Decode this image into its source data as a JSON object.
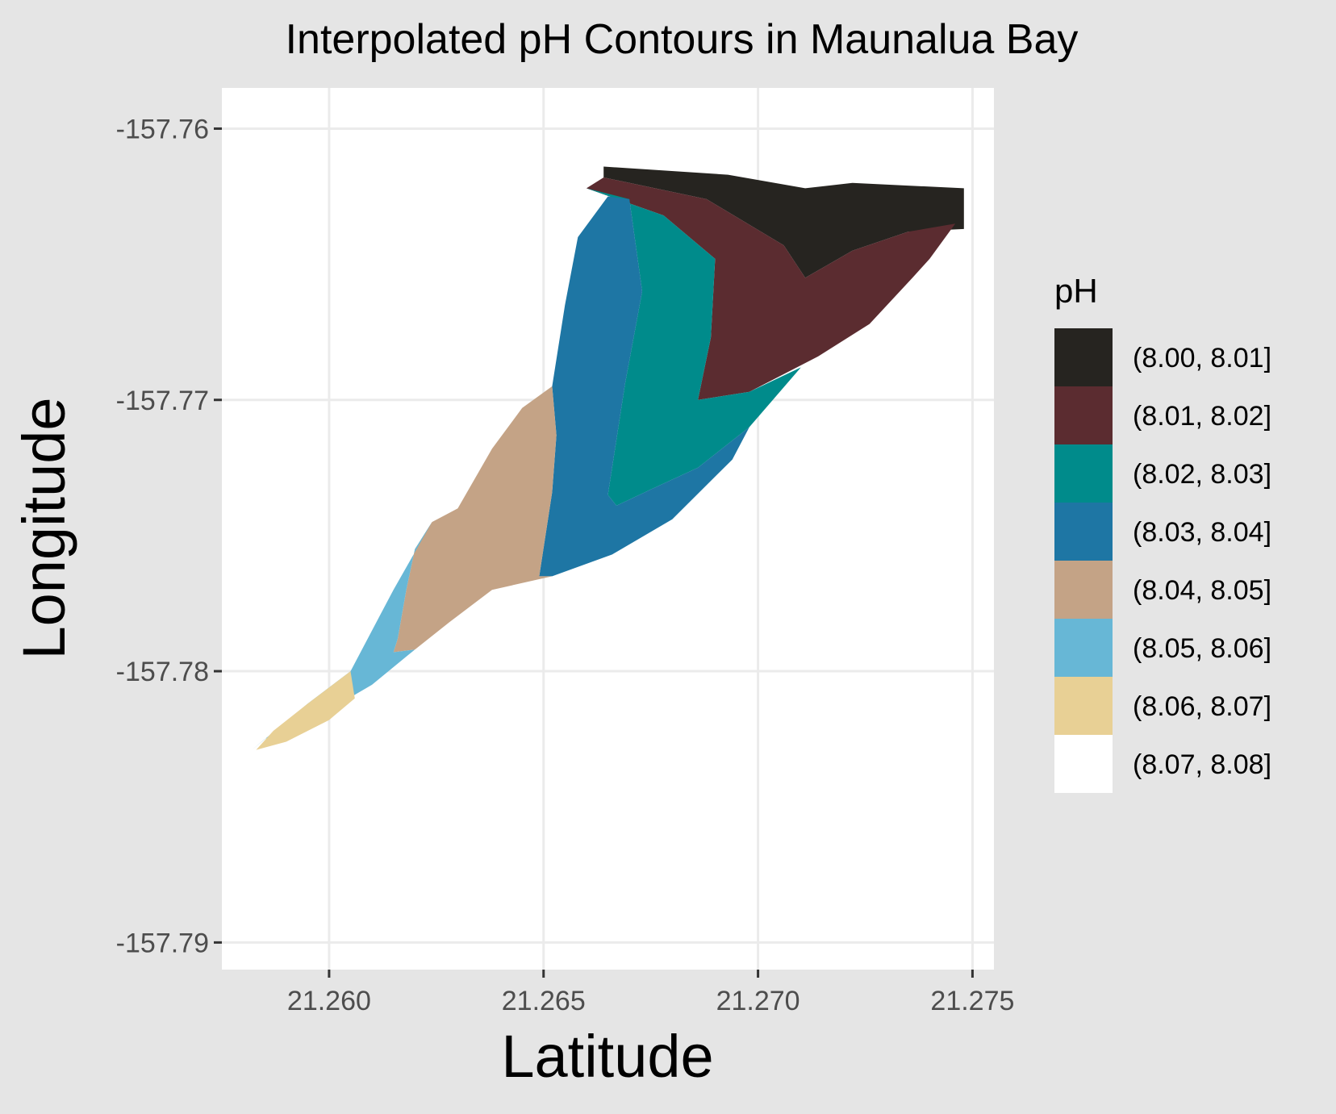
{
  "chart_data": {
    "type": "contour",
    "title": "Interpolated pH Contours in Maunalua Bay",
    "xlabel": "Latitude",
    "ylabel": "Longitude",
    "xlim": [
      21.2575,
      21.2755
    ],
    "ylim": [
      -157.791,
      -157.7585
    ],
    "x_ticks": [
      {
        "value": 21.26,
        "label": "21.260"
      },
      {
        "value": 21.265,
        "label": "21.265"
      },
      {
        "value": 21.27,
        "label": "21.270"
      },
      {
        "value": 21.275,
        "label": "21.275"
      }
    ],
    "y_ticks": [
      {
        "value": -157.76,
        "label": "-157.76"
      },
      {
        "value": -157.77,
        "label": "-157.77"
      },
      {
        "value": -157.78,
        "label": "-157.78"
      },
      {
        "value": -157.79,
        "label": "-157.79"
      }
    ],
    "grid": true,
    "legend": {
      "title": "pH",
      "position": "right",
      "items": [
        {
          "label": "(8.00, 8.01]",
          "color": "#262420"
        },
        {
          "label": "(8.01, 8.02]",
          "color": "#5b2c30"
        },
        {
          "label": "(8.02, 8.03]",
          "color": "#008b8b"
        },
        {
          "label": "(8.03, 8.04]",
          "color": "#1e76a4"
        },
        {
          "label": "(8.04, 8.05]",
          "color": "#c4a386"
        },
        {
          "label": "(8.05, 8.06]",
          "color": "#67b7d6"
        },
        {
          "label": "(8.06, 8.07]",
          "color": "#e8d095"
        },
        {
          "label": "(8.07, 8.08]",
          "color": "#ffffff"
        }
      ]
    },
    "regions": [
      {
        "level": "(8.00, 8.01]",
        "points": [
          [
            21.2664,
            -157.7614
          ],
          [
            21.2693,
            -157.7617
          ],
          [
            21.2711,
            -157.7622
          ],
          [
            21.2722,
            -157.762
          ],
          [
            21.2735,
            -157.7621
          ],
          [
            21.2748,
            -157.7622
          ],
          [
            21.2748,
            -157.7637
          ],
          [
            21.2735,
            -157.7638
          ],
          [
            21.2722,
            -157.7645
          ],
          [
            21.2711,
            -157.7655
          ],
          [
            21.2706,
            -157.7643
          ],
          [
            21.2688,
            -157.7626
          ],
          [
            21.2664,
            -157.7618
          ]
        ]
      },
      {
        "level": "(8.01, 8.02]",
        "points": [
          [
            21.2664,
            -157.7618
          ],
          [
            21.2688,
            -157.7626
          ],
          [
            21.2706,
            -157.7643
          ],
          [
            21.2711,
            -157.7655
          ],
          [
            21.2722,
            -157.7645
          ],
          [
            21.2735,
            -157.7638
          ],
          [
            21.2746,
            -157.7635
          ],
          [
            21.274,
            -157.7648
          ],
          [
            21.2736,
            -157.7655
          ],
          [
            21.2726,
            -157.7672
          ],
          [
            21.2714,
            -157.7684
          ],
          [
            21.2698,
            -157.7697
          ],
          [
            21.2686,
            -157.77
          ],
          [
            21.2689,
            -157.7677
          ],
          [
            21.269,
            -157.7648
          ],
          [
            21.2678,
            -157.7632
          ],
          [
            21.266,
            -157.7622
          ]
        ]
      },
      {
        "level": "(8.02, 8.03]",
        "points": [
          [
            21.266,
            -157.7622
          ],
          [
            21.2678,
            -157.7632
          ],
          [
            21.269,
            -157.7648
          ],
          [
            21.2689,
            -157.7677
          ],
          [
            21.2686,
            -157.77
          ],
          [
            21.2698,
            -157.7697
          ],
          [
            21.271,
            -157.7688
          ],
          [
            21.2698,
            -157.771
          ],
          [
            21.2686,
            -157.7725
          ],
          [
            21.2675,
            -157.7733
          ],
          [
            21.2667,
            -157.7739
          ],
          [
            21.2665,
            -157.7735
          ],
          [
            21.2669,
            -157.7694
          ],
          [
            21.2673,
            -157.766
          ],
          [
            21.267,
            -157.7626
          ]
        ]
      },
      {
        "level": "(8.03, 8.04]",
        "points": [
          [
            21.2665,
            -157.7625
          ],
          [
            21.267,
            -157.7626
          ],
          [
            21.2673,
            -157.766
          ],
          [
            21.2669,
            -157.7694
          ],
          [
            21.2665,
            -157.7735
          ],
          [
            21.2667,
            -157.7739
          ],
          [
            21.2675,
            -157.7733
          ],
          [
            21.2686,
            -157.7725
          ],
          [
            21.2698,
            -157.771
          ],
          [
            21.2694,
            -157.7722
          ],
          [
            21.268,
            -157.7744
          ],
          [
            21.2666,
            -157.7757
          ],
          [
            21.2652,
            -157.7765
          ],
          [
            21.2649,
            -157.7765
          ],
          [
            21.2652,
            -157.7734
          ],
          [
            21.2653,
            -157.7713
          ],
          [
            21.2652,
            -157.7695
          ],
          [
            21.2655,
            -157.7665
          ],
          [
            21.2658,
            -157.764
          ]
        ]
      },
      {
        "level": "(8.04, 8.05]",
        "points": [
          [
            21.2652,
            -157.7695
          ],
          [
            21.2653,
            -157.7713
          ],
          [
            21.2652,
            -157.7734
          ],
          [
            21.2649,
            -157.7765
          ],
          [
            21.2652,
            -157.7765
          ],
          [
            21.2638,
            -157.777
          ],
          [
            21.2628,
            -157.7782
          ],
          [
            21.262,
            -157.7792
          ],
          [
            21.2615,
            -157.7793
          ],
          [
            21.2616,
            -157.7788
          ],
          [
            21.2618,
            -157.777
          ],
          [
            21.262,
            -157.7755
          ],
          [
            21.2624,
            -157.7745
          ],
          [
            21.263,
            -157.774
          ],
          [
            21.2638,
            -157.7718
          ],
          [
            21.2645,
            -157.7703
          ]
        ]
      },
      {
        "level": "(8.05, 8.06]",
        "points": [
          [
            21.2624,
            -157.7745
          ],
          [
            21.262,
            -157.7755
          ],
          [
            21.2618,
            -157.777
          ],
          [
            21.2616,
            -157.7788
          ],
          [
            21.2615,
            -157.7793
          ],
          [
            21.262,
            -157.7792
          ],
          [
            21.261,
            -157.7805
          ],
          [
            21.2597,
            -157.7817
          ],
          [
            21.2585,
            -157.7825
          ],
          [
            21.2582,
            -157.7829
          ],
          [
            21.2595,
            -157.7812
          ],
          [
            21.2605,
            -157.78
          ],
          [
            21.261,
            -157.7785
          ],
          [
            21.2615,
            -157.777
          ]
        ]
      },
      {
        "level": "(8.06, 8.07]",
        "points": [
          [
            21.2605,
            -157.78
          ],
          [
            21.2595,
            -157.7812
          ],
          [
            21.2587,
            -157.7822
          ],
          [
            21.2583,
            -157.7829
          ],
          [
            21.259,
            -157.7826
          ],
          [
            21.26,
            -157.7818
          ],
          [
            21.2606,
            -157.781
          ]
        ]
      }
    ],
    "annotations": []
  }
}
